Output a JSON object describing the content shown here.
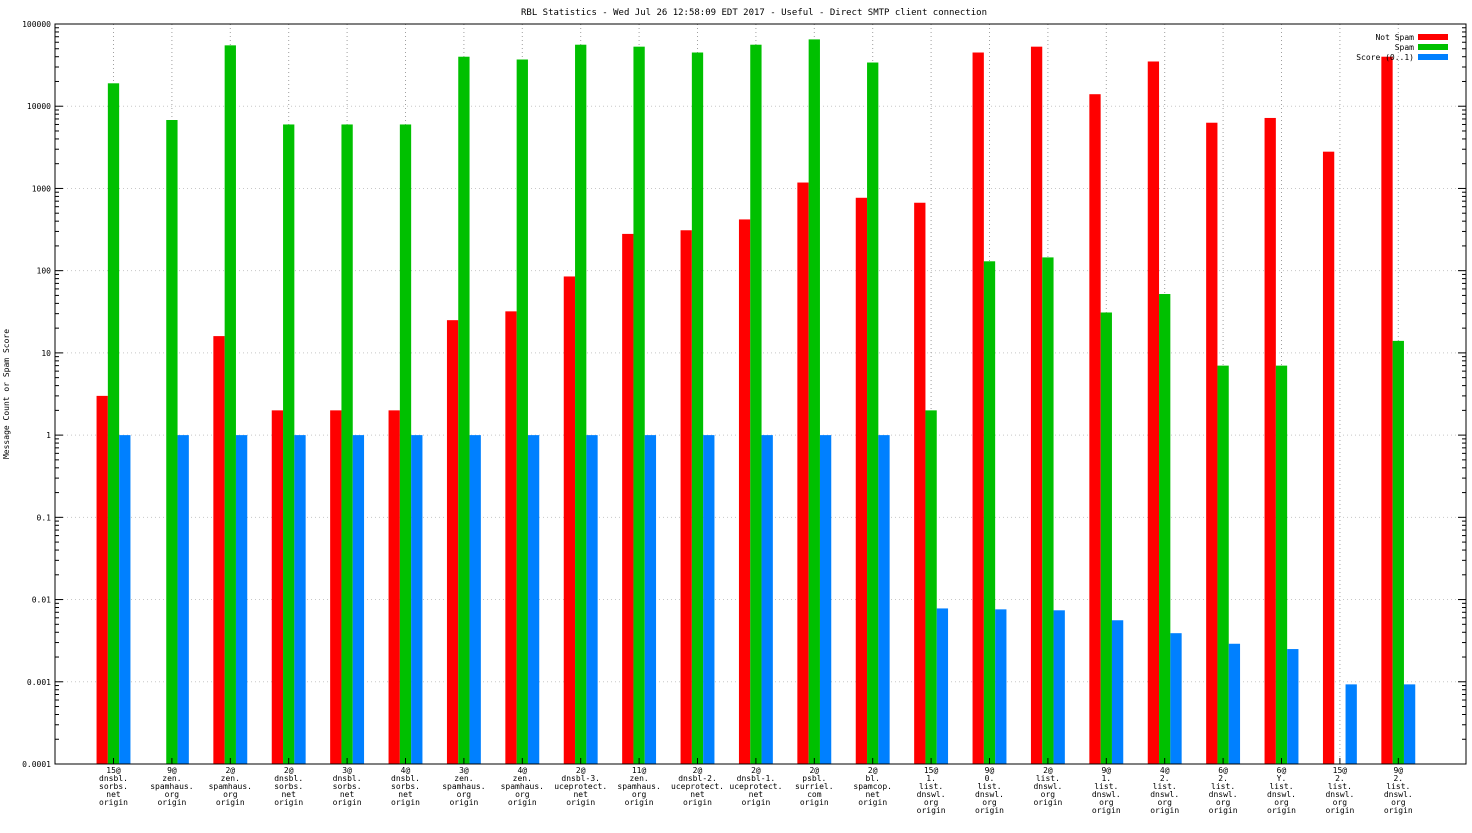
{
  "chart_data": {
    "type": "bar",
    "title": "RBL Statistics - Wed Jul 26 12:58:09 EDT 2017 - Useful - Direct SMTP client connection",
    "xlabel": "",
    "ylabel": "Message Count or Spam Score",
    "y_scale": "log",
    "ylim": [
      0.0001,
      100000
    ],
    "y_ticks": [
      "0.0001",
      "0.001",
      "0.01",
      "0.1",
      "1",
      "10",
      "100",
      "1000",
      "10000",
      "100000"
    ],
    "legend_position": "top-right",
    "grid": "vertical dashed at categories",
    "categories": [
      [
        "15@",
        "dnsbl.",
        "sorbs.",
        "net",
        "origin"
      ],
      [
        "9@",
        "zen.",
        "spamhaus.",
        "org",
        "origin"
      ],
      [
        "2@",
        "zen.",
        "spamhaus.",
        "org",
        "origin"
      ],
      [
        "2@",
        "dnsbl.",
        "sorbs.",
        "net",
        "origin"
      ],
      [
        "3@",
        "dnsbl.",
        "sorbs.",
        "net",
        "origin"
      ],
      [
        "4@",
        "dnsbl.",
        "sorbs.",
        "net",
        "origin"
      ],
      [
        "3@",
        "zen.",
        "spamhaus.",
        "org",
        "origin"
      ],
      [
        "4@",
        "zen.",
        "spamhaus.",
        "org",
        "origin"
      ],
      [
        "2@",
        "dnsbl-3.",
        "uceprotect.",
        "net",
        "origin"
      ],
      [
        "11@",
        "zen.",
        "spamhaus.",
        "org",
        "origin"
      ],
      [
        "2@",
        "dnsbl-2.",
        "uceprotect.",
        "net",
        "origin"
      ],
      [
        "2@",
        "dnsbl-1.",
        "uceprotect.",
        "net",
        "origin"
      ],
      [
        "2@",
        "psbl.",
        "surriel.",
        "com",
        "origin"
      ],
      [
        "2@",
        "bl.",
        "spamcop.",
        "net",
        "origin"
      ],
      [
        "15@",
        "1.",
        "list.",
        "dnswl.",
        "org",
        "origin"
      ],
      [
        "9@",
        "0.",
        "list.",
        "dnswl.",
        "org",
        "origin"
      ],
      [
        "2@",
        "list.",
        "dnswl.",
        "org",
        "origin"
      ],
      [
        "9@",
        "1.",
        "list.",
        "dnswl.",
        "org",
        "origin"
      ],
      [
        "4@",
        "2.",
        "list.",
        "dnswl.",
        "org",
        "origin"
      ],
      [
        "6@",
        "2.",
        "list.",
        "dnswl.",
        "org",
        "origin"
      ],
      [
        "6@",
        "Y.",
        "list.",
        "dnswl.",
        "org",
        "origin"
      ],
      [
        "15@",
        "2.",
        "list.",
        "dnswl.",
        "org",
        "origin"
      ],
      [
        "9@",
        "2.",
        "list.",
        "dnswl.",
        "org",
        "origin"
      ]
    ],
    "series": [
      {
        "name": "Not Spam",
        "color": "#ff0000",
        "values": [
          3,
          null,
          16,
          2,
          2,
          2,
          25,
          32,
          85,
          280,
          310,
          420,
          1180,
          770,
          670,
          45000,
          53000,
          14000,
          35000,
          6300,
          7200,
          2800,
          40000
        ]
      },
      {
        "name": "Spam",
        "color": "#00c000",
        "values": [
          19000,
          6800,
          55000,
          6000,
          6000,
          6000,
          40000,
          37000,
          56000,
          53000,
          45000,
          56000,
          65000,
          34000,
          2,
          130,
          145,
          31,
          52,
          7,
          7,
          null,
          14
        ]
      },
      {
        "name": "Score (0..1)",
        "color": "#0080ff",
        "values": [
          1,
          1,
          1,
          1,
          1,
          1,
          1,
          1,
          1,
          1,
          1,
          1,
          1,
          1,
          0.0078,
          0.0076,
          0.0074,
          0.0056,
          0.0039,
          0.0029,
          0.0025,
          0.00093,
          0.00093
        ]
      }
    ]
  }
}
